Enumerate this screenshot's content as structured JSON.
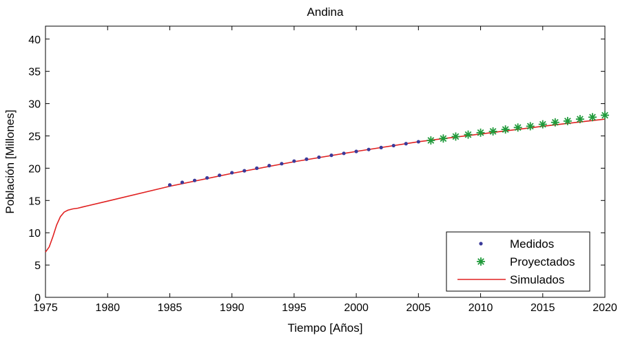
{
  "chart_data": {
    "type": "line",
    "title": "Andina",
    "xlabel": "Tiempo [Años]",
    "ylabel": "Población [Millones]",
    "xlim": [
      1975,
      2020
    ],
    "ylim": [
      0,
      42
    ],
    "xticks": [
      1975,
      1980,
      1985,
      1990,
      1995,
      2000,
      2005,
      2010,
      2015,
      2020
    ],
    "yticks": [
      0,
      5,
      10,
      15,
      20,
      25,
      30,
      35,
      40
    ],
    "grid": false,
    "legend_position": "bottom-right",
    "series": [
      {
        "name": "Medidos",
        "marker": "dot",
        "color": "#3a3a9a",
        "x": [
          1985,
          1986,
          1987,
          1988,
          1989,
          1990,
          1991,
          1992,
          1993,
          1994,
          1995,
          1996,
          1997,
          1998,
          1999,
          2000,
          2001,
          2002,
          2003,
          2004,
          2005
        ],
        "y": [
          17.4,
          17.8,
          18.1,
          18.5,
          18.9,
          19.3,
          19.6,
          20.0,
          20.4,
          20.7,
          21.1,
          21.4,
          21.7,
          22.0,
          22.3,
          22.6,
          22.9,
          23.2,
          23.5,
          23.8,
          24.1
        ]
      },
      {
        "name": "Proyectados",
        "marker": "asterisk",
        "color": "#1f9a3a",
        "x": [
          2006,
          2007,
          2008,
          2009,
          2010,
          2011,
          2012,
          2013,
          2014,
          2015,
          2016,
          2017,
          2018,
          2019,
          2020
        ],
        "y": [
          24.3,
          24.6,
          24.9,
          25.2,
          25.5,
          25.7,
          26.0,
          26.3,
          26.5,
          26.8,
          27.1,
          27.3,
          27.6,
          27.9,
          28.2
        ]
      },
      {
        "name": "Simulados",
        "marker": "line",
        "color": "#e02020",
        "x": [
          1975,
          1975.3,
          1975.6,
          1975.9,
          1976.2,
          1976.5,
          1976.8,
          1977.2,
          1977.6,
          1978,
          1980,
          1985,
          1990,
          1995,
          2000,
          2005,
          2010,
          2015,
          2020
        ],
        "y": [
          7.0,
          7.8,
          9.4,
          11.2,
          12.5,
          13.2,
          13.5,
          13.7,
          13.8,
          14.0,
          14.9,
          17.2,
          19.2,
          21.0,
          22.6,
          24.1,
          25.3,
          26.5,
          27.6
        ]
      }
    ]
  }
}
